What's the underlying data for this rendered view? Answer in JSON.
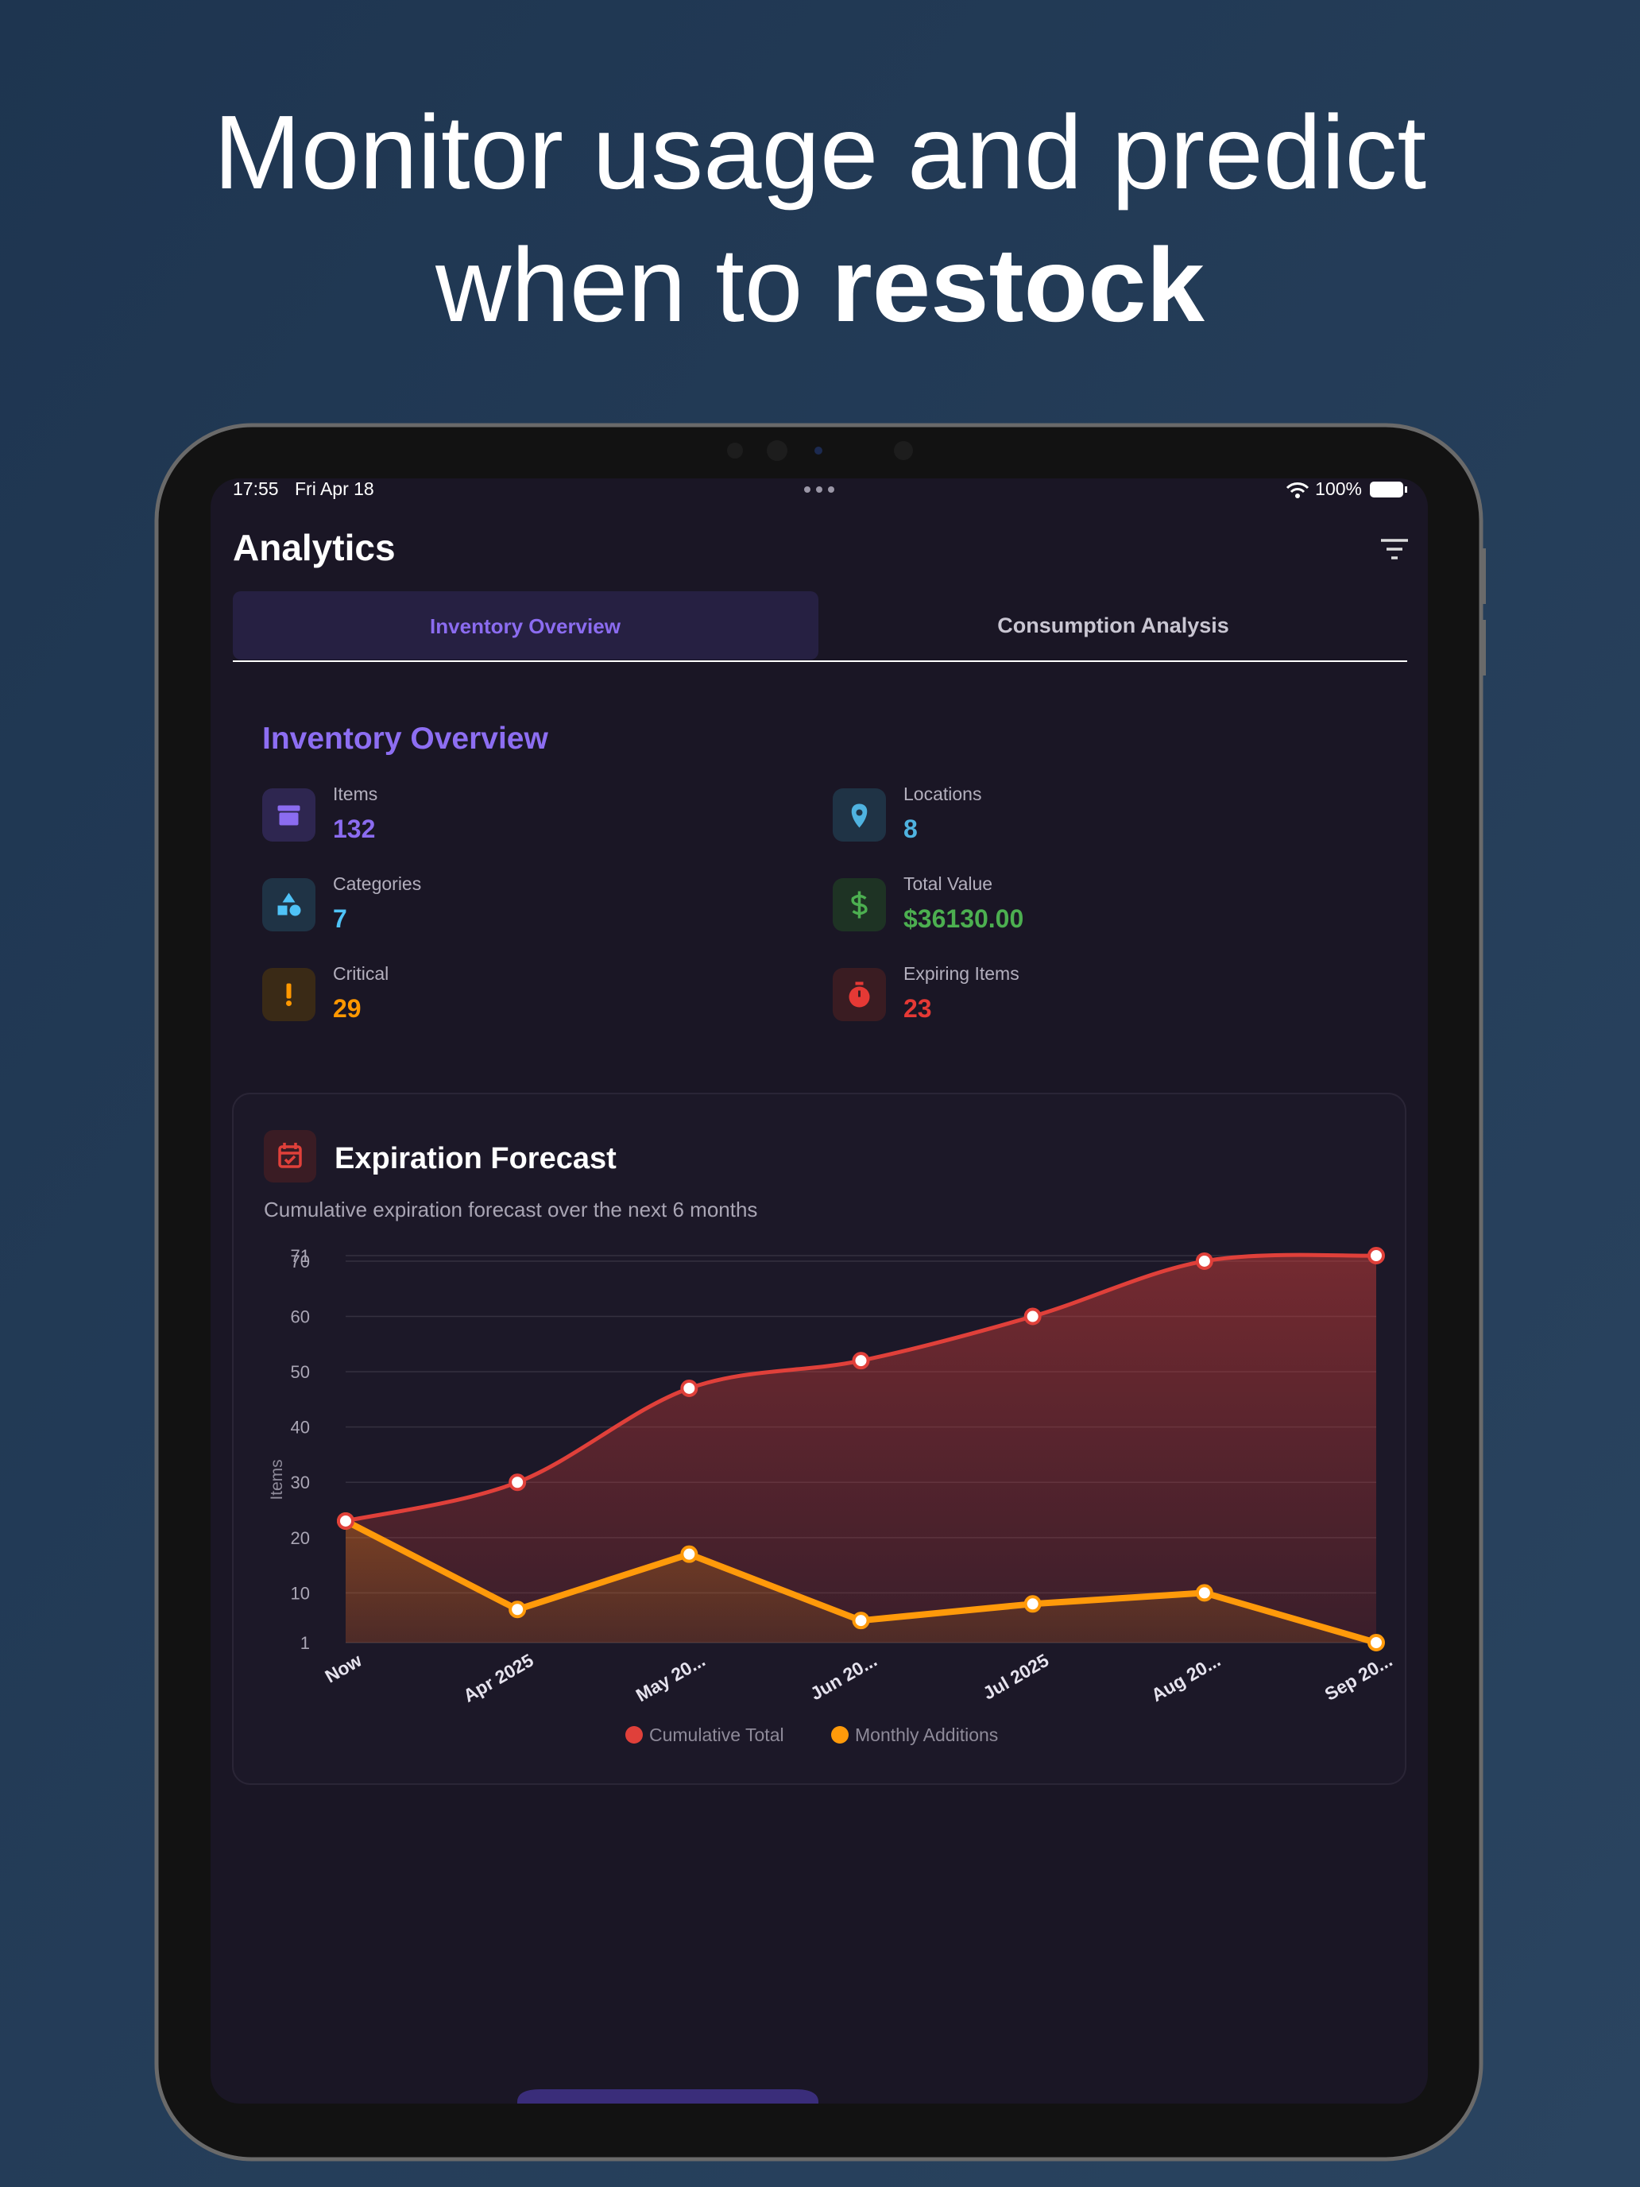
{
  "headline": {
    "line1": "Monitor usage and predict",
    "line2": "when to",
    "emphasis": "restock"
  },
  "status_bar": {
    "time": "17:55",
    "date": "Fri Apr 18",
    "battery": "100%"
  },
  "screen_title": "Analytics",
  "tabs": [
    "Inventory Overview",
    "Consumption Analysis"
  ],
  "overview": {
    "title": "Inventory Overview",
    "stats": [
      {
        "label": "Items",
        "value": 132
      },
      {
        "label": "Locations",
        "value": 8
      },
      {
        "label": "Categories",
        "value": 7
      },
      {
        "label": "Total Value",
        "value": "$36130.00"
      },
      {
        "label": "Critical",
        "value": 29
      },
      {
        "label": "Expiring Items",
        "value": 23
      }
    ]
  },
  "chart_data": {
    "type": "line",
    "title": "Expiration Forecast",
    "subtitle": "Cumulative expiration forecast over the next 6 months",
    "y_label": "Items",
    "categories": [
      "Now",
      "Apr 2025",
      "May 20...",
      "Jun 20...",
      "Jul 2025",
      "Aug 20...",
      "Sep 20..."
    ],
    "series": [
      {
        "name": "Cumulative Total",
        "color": "#e0403a",
        "values": [
          23,
          30,
          47,
          52,
          60,
          70,
          71
        ]
      },
      {
        "name": "Monthly Additions",
        "color": "#ff9a0a",
        "values": [
          23,
          7,
          17,
          5,
          8,
          10,
          1
        ]
      }
    ],
    "ylim": [
      1,
      71
    ],
    "yticks": [
      1,
      10,
      20,
      30,
      40,
      50,
      60,
      70,
      71
    ],
    "grid": true,
    "legend": "bottom"
  }
}
